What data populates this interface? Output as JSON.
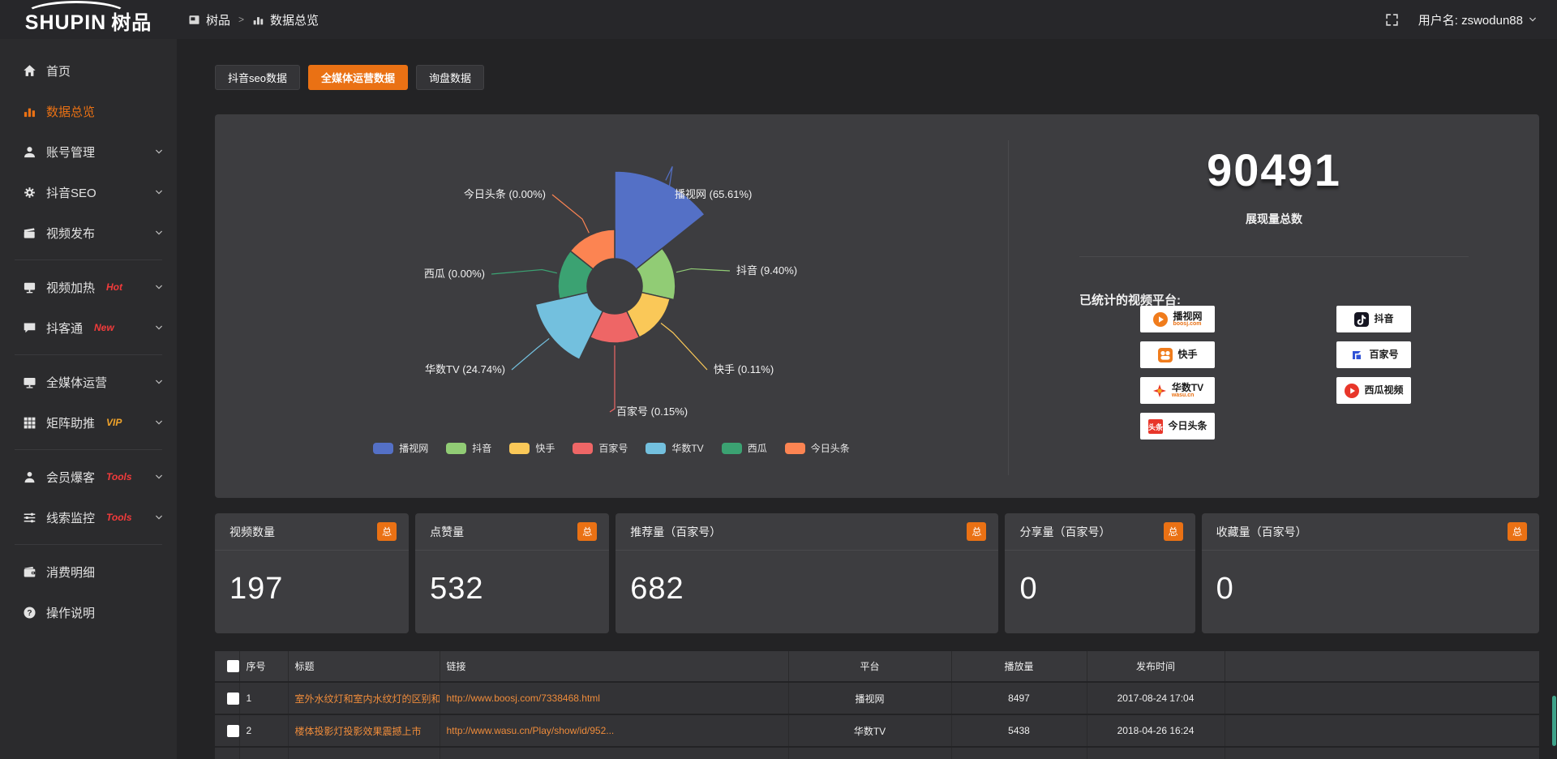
{
  "topbar": {
    "logo_main": "SHUPIN",
    "logo_suffix": "树品",
    "breadcrumb": [
      {
        "label": "树品",
        "icon": "window"
      },
      {
        "label": "数据总览",
        "icon": "bar-chart"
      }
    ],
    "breadcrumb_separator": ">",
    "username": "用户名: zswodun88"
  },
  "sidebar": {
    "items": [
      {
        "type": "item",
        "icon": "home",
        "label": "首页"
      },
      {
        "type": "item",
        "icon": "bar-chart",
        "label": "数据总览",
        "active": true
      },
      {
        "type": "item",
        "icon": "user",
        "label": "账号管理",
        "chevron": true
      },
      {
        "type": "item",
        "icon": "gear",
        "label": "抖音SEO",
        "chevron": true
      },
      {
        "type": "item",
        "icon": "clapper",
        "label": "视频发布",
        "chevron": true
      },
      {
        "type": "divider"
      },
      {
        "type": "item",
        "icon": "screen",
        "label": "视频加热",
        "tag": "Hot",
        "tag_color": "#f23b3b",
        "chevron": true
      },
      {
        "type": "item",
        "icon": "chat",
        "label": "抖客通",
        "tag": "New",
        "tag_color": "#f23b3b",
        "chevron": true
      },
      {
        "type": "divider"
      },
      {
        "type": "item",
        "icon": "monitor",
        "label": "全媒体运营",
        "chevron": true
      },
      {
        "type": "item",
        "icon": "grid",
        "label": "矩阵助推",
        "tag": "VIP",
        "tag_color": "#f0a32a",
        "chevron": true
      },
      {
        "type": "divider"
      },
      {
        "type": "item",
        "icon": "person",
        "label": "会员爆客",
        "tag": "Tools",
        "tag_color": "#f23b3b",
        "chevron": true
      },
      {
        "type": "item",
        "icon": "sliders",
        "label": "线索监控",
        "tag": "Tools",
        "tag_color": "#f23b3b",
        "chevron": true
      },
      {
        "type": "divider"
      },
      {
        "type": "item",
        "icon": "wallet",
        "label": "消费明细"
      },
      {
        "type": "item",
        "icon": "question",
        "label": "操作说明"
      }
    ]
  },
  "tabs": [
    {
      "label": "抖音seo数据",
      "active": false
    },
    {
      "label": "全媒体运营数据",
      "active": true
    },
    {
      "label": "询盘数据",
      "active": false
    }
  ],
  "chart_data": {
    "type": "pie",
    "variant": "nightingale-rose",
    "slices": [
      {
        "name": "播视网",
        "percent": 65.61,
        "color": "#5470c6"
      },
      {
        "name": "抖音",
        "percent": 9.4,
        "color": "#91cc75"
      },
      {
        "name": "快手",
        "percent": 0.11,
        "color": "#fac858"
      },
      {
        "name": "百家号",
        "percent": 0.15,
        "color": "#ee6666"
      },
      {
        "name": "华数TV",
        "percent": 24.74,
        "color": "#73c0de"
      },
      {
        "name": "西瓜",
        "percent": 0.0,
        "color": "#3ba272"
      },
      {
        "name": "今日头条",
        "percent": 0.0,
        "color": "#fc8452"
      }
    ],
    "legend": [
      "播视网",
      "抖音",
      "快手",
      "百家号",
      "华数TV",
      "西瓜",
      "今日头条"
    ],
    "legend_position": "bottom"
  },
  "summary": {
    "total_value": "90491",
    "total_label": "展现量总数",
    "platforms_label": "已统计的视频平台:",
    "platforms_left": [
      {
        "name": "播视网",
        "sub": "boosj.com",
        "icon": "boosj"
      },
      {
        "name": "快手",
        "icon": "kuaishou"
      },
      {
        "name": "华数TV",
        "sub": "wasu.cn",
        "icon": "wasu"
      },
      {
        "name": "今日头条",
        "icon": "toutiao"
      }
    ],
    "platforms_right": [
      {
        "name": "抖音",
        "icon": "douyin"
      },
      {
        "name": "百家号",
        "icon": "baijiahao"
      },
      {
        "name": "西瓜视频",
        "icon": "xigua"
      }
    ]
  },
  "stat_cards": [
    {
      "title": "视频数量",
      "badge": "总",
      "value": "197"
    },
    {
      "title": "点赞量",
      "badge": "总",
      "value": "532"
    },
    {
      "title": "推荐量（百家号）",
      "badge": "总",
      "value": "682"
    },
    {
      "title": "分享量（百家号）",
      "badge": "总",
      "value": "0"
    },
    {
      "title": "收藏量（百家号）",
      "badge": "总",
      "value": "0"
    }
  ],
  "table": {
    "columns": [
      "序号",
      "标题",
      "链接",
      "平台",
      "播放量",
      "发布时间"
    ],
    "rows": [
      {
        "index": "1",
        "title": "室外水纹灯和室内水纹灯的区别和简介",
        "link": "http://www.boosj.com/7338468.html",
        "platform": "播视网",
        "plays": "8497",
        "published": "2017-08-24 17:04"
      },
      {
        "index": "2",
        "title": "楼体投影灯投影效果震撼上市",
        "link": "http://www.wasu.cn/Play/show/id/952...",
        "platform": "华数TV",
        "plays": "5438",
        "published": "2018-04-26 16:24"
      },
      {
        "index": "",
        "title": "",
        "link": "",
        "platform": "",
        "plays": "",
        "published": ""
      }
    ]
  },
  "colors": {
    "accent_orange": "#ea7114",
    "link_orange": "#ef8c3b",
    "tag_red": "#f23b3b",
    "tag_vip": "#f0a32a",
    "panel_bg": "#3d3d40",
    "page_bg": "#232325"
  }
}
